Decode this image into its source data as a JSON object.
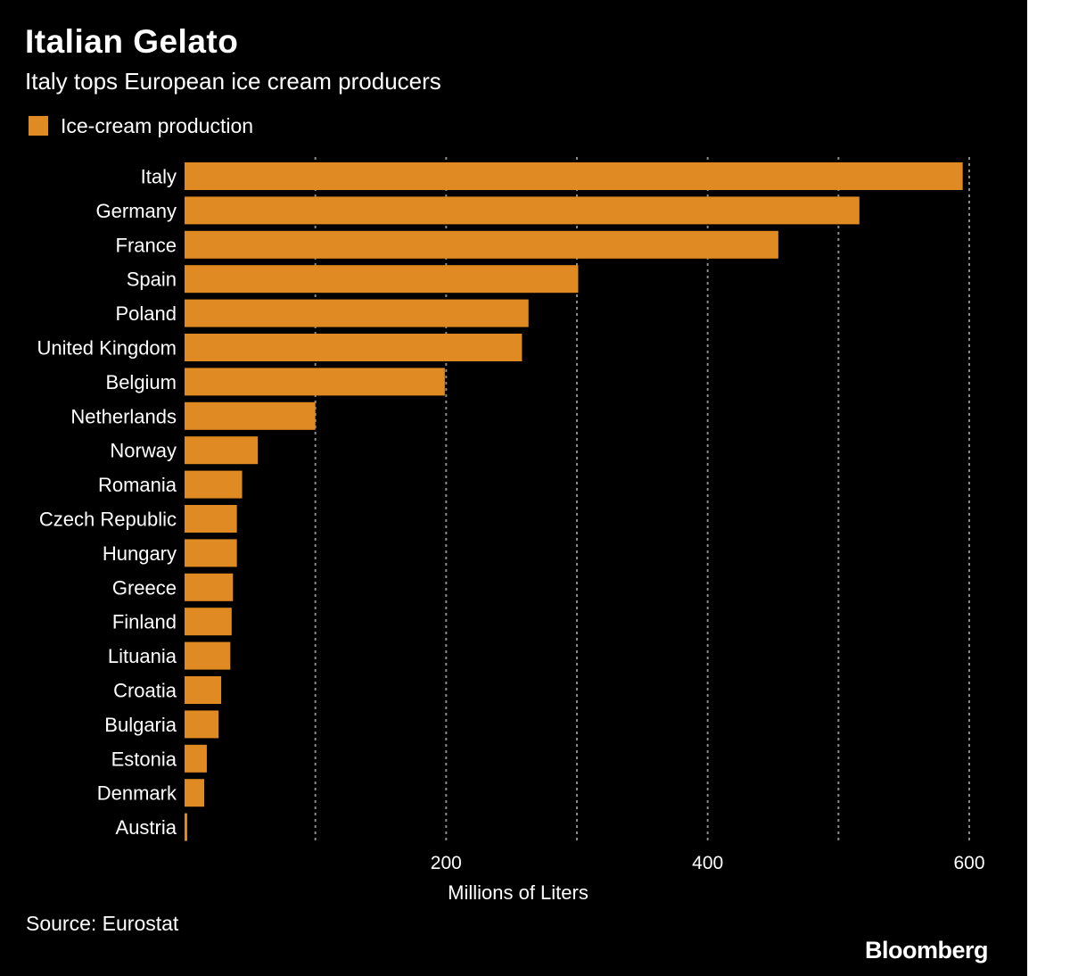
{
  "header": {
    "title": "Italian Gelato",
    "subtitle": "Italy tops European ice cream producers"
  },
  "legend": {
    "label": "Ice-cream production"
  },
  "footer": {
    "source": "Source: Eurostat",
    "brand": "Bloomberg"
  },
  "colors": {
    "background": "#000000",
    "bar": "#e08a23",
    "text": "#ffffff",
    "grid": "#8a8a8a"
  },
  "chart_data": {
    "type": "bar",
    "orientation": "horizontal",
    "title": "Italian Gelato",
    "subtitle": "Italy tops European ice cream producers",
    "xlabel": "Millions of Liters",
    "ylabel": "",
    "xlim": [
      0,
      600
    ],
    "xticks": [
      200,
      400,
      600
    ],
    "gridlines": [
      100,
      200,
      300,
      400,
      500,
      600
    ],
    "grid": true,
    "legend_position": "top-left",
    "categories": [
      "Italy",
      "Germany",
      "France",
      "Spain",
      "Poland",
      "United Kingdom",
      "Belgium",
      "Netherlands",
      "Norway",
      "Romania",
      "Czech Republic",
      "Hungary",
      "Greece",
      "Finland",
      "Lituania",
      "Croatia",
      "Bulgaria",
      "Estonia",
      "Denmark",
      "Austria"
    ],
    "series": [
      {
        "name": "Ice-cream production",
        "values": [
          595,
          516,
          454,
          301,
          263,
          258,
          199,
          100,
          56,
          44,
          40,
          40,
          37,
          36,
          35,
          28,
          26,
          17,
          15,
          2
        ]
      }
    ]
  }
}
